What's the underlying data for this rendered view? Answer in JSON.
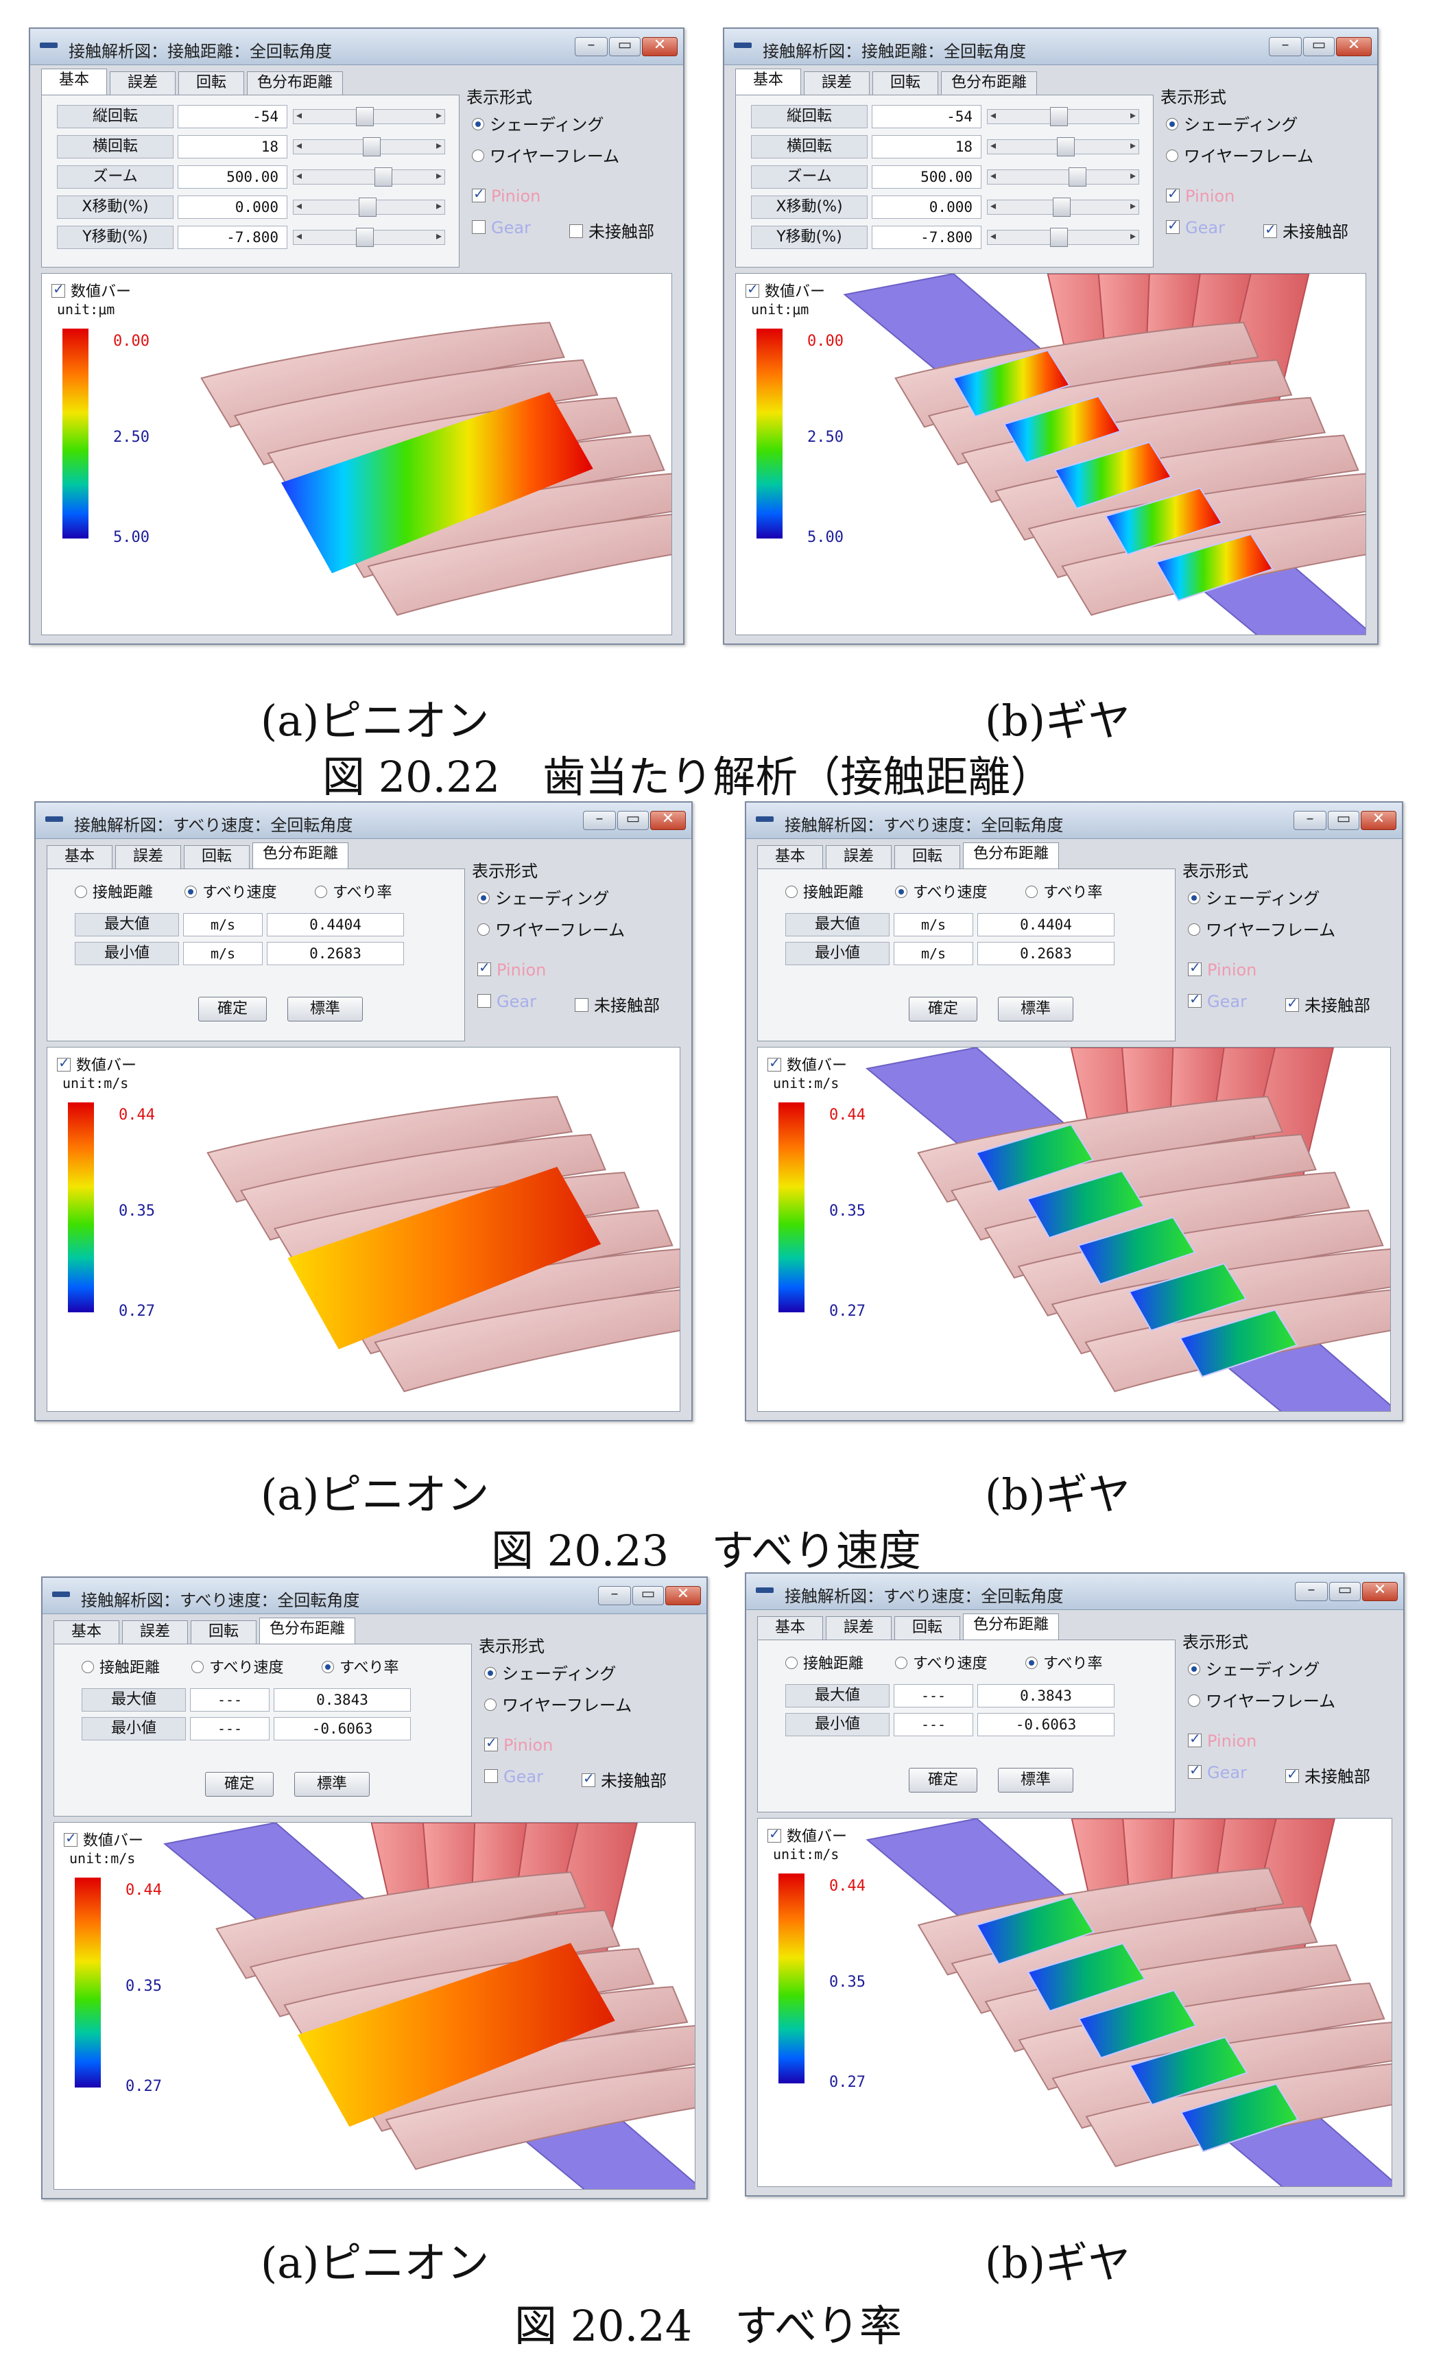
{
  "windows": [
    {
      "title": "接触解析図：接触距離：全回転角度",
      "tabs": [
        "基本",
        "誤差",
        "回転",
        "色分布距離"
      ],
      "active_tab": 0,
      "panel_type": "basic",
      "rows": [
        {
          "label": "縦回転",
          "value": "-54",
          "thumb": 0.48
        },
        {
          "label": "横回転",
          "value": "18",
          "thumb": 0.53
        },
        {
          "label": "ズーム",
          "value": "500.00",
          "thumb": 0.62
        },
        {
          "label": "X移動(%)",
          "value": "0.000",
          "thumb": 0.5
        },
        {
          "label": "Y移動(%)",
          "value": "-7.800",
          "thumb": 0.48
        }
      ],
      "display": {
        "header": "表示形式",
        "shading": "シェーディング",
        "wireframe": "ワイヤーフレーム",
        "shading_selected": true
      },
      "checks": {
        "pinion": "Pinion",
        "pinion_on": true,
        "gear": "Gear",
        "gear_on": false,
        "noncontact": "未接触部",
        "noncontact_on": false
      },
      "colorbar": {
        "label": "数値バー",
        "unit": "unit:μm",
        "ticks": [
          "0.00",
          "2.50",
          "5.00"
        ],
        "checked": true
      },
      "caption": "(a)ピニオン"
    },
    {
      "title": "接触解析図：接触距離：全回転角度",
      "tabs": [
        "基本",
        "誤差",
        "回転",
        "色分布距離"
      ],
      "active_tab": 0,
      "panel_type": "basic",
      "rows": [
        {
          "label": "縦回転",
          "value": "-54",
          "thumb": 0.48
        },
        {
          "label": "横回転",
          "value": "18",
          "thumb": 0.53
        },
        {
          "label": "ズーム",
          "value": "500.00",
          "thumb": 0.62
        },
        {
          "label": "X移動(%)",
          "value": "0.000",
          "thumb": 0.5
        },
        {
          "label": "Y移動(%)",
          "value": "-7.800",
          "thumb": 0.48
        }
      ],
      "display": {
        "header": "表示形式",
        "shading": "シェーディング",
        "wireframe": "ワイヤーフレーム",
        "shading_selected": true
      },
      "checks": {
        "pinion": "Pinion",
        "pinion_on": true,
        "gear": "Gear",
        "gear_on": true,
        "noncontact": "未接触部",
        "noncontact_on": true
      },
      "colorbar": {
        "label": "数値バー",
        "unit": "unit:μm",
        "ticks": [
          "0.00",
          "2.50",
          "5.00"
        ],
        "checked": true
      },
      "caption": "(b)ギヤ"
    },
    {
      "title": "接触解析図：すべり速度：全回転角度",
      "tabs": [
        "基本",
        "誤差",
        "回転",
        "色分布距離"
      ],
      "active_tab": 3,
      "panel_type": "color",
      "radio": [
        "接触距離",
        "すべり速度",
        "すべり率"
      ],
      "radio_selected": 1,
      "color_rows": [
        {
          "label": "最大値",
          "unit": "m/s",
          "value": "0.4404"
        },
        {
          "label": "最小値",
          "unit": "m/s",
          "value": "0.2683"
        }
      ],
      "buttons": [
        "確定",
        "標準"
      ],
      "display": {
        "header": "表示形式",
        "shading": "シェーディング",
        "wireframe": "ワイヤーフレーム",
        "shading_selected": true
      },
      "checks": {
        "pinion": "Pinion",
        "pinion_on": true,
        "gear": "Gear",
        "gear_on": false,
        "noncontact": "未接触部",
        "noncontact_on": false
      },
      "colorbar": {
        "label": "数値バー",
        "unit": "unit:m/s",
        "ticks": [
          "0.44",
          "0.35",
          "0.27"
        ],
        "checked": true
      },
      "caption": "(a)ピニオン"
    },
    {
      "title": "接触解析図：すべり速度：全回転角度",
      "tabs": [
        "基本",
        "誤差",
        "回転",
        "色分布距離"
      ],
      "active_tab": 3,
      "panel_type": "color",
      "radio": [
        "接触距離",
        "すべり速度",
        "すべり率"
      ],
      "radio_selected": 1,
      "color_rows": [
        {
          "label": "最大値",
          "unit": "m/s",
          "value": "0.4404"
        },
        {
          "label": "最小値",
          "unit": "m/s",
          "value": "0.2683"
        }
      ],
      "buttons": [
        "確定",
        "標準"
      ],
      "display": {
        "header": "表示形式",
        "shading": "シェーディング",
        "wireframe": "ワイヤーフレーム",
        "shading_selected": true
      },
      "checks": {
        "pinion": "Pinion",
        "pinion_on": true,
        "gear": "Gear",
        "gear_on": true,
        "noncontact": "未接触部",
        "noncontact_on": true
      },
      "colorbar": {
        "label": "数値バー",
        "unit": "unit:m/s",
        "ticks": [
          "0.44",
          "0.35",
          "0.27"
        ],
        "checked": true
      },
      "caption": "(b)ギヤ"
    },
    {
      "title": "接触解析図：すべり速度：全回転角度",
      "tabs": [
        "基本",
        "誤差",
        "回転",
        "色分布距離"
      ],
      "active_tab": 3,
      "panel_type": "color",
      "radio": [
        "接触距離",
        "すべり速度",
        "すべり率"
      ],
      "radio_selected": 2,
      "color_rows": [
        {
          "label": "最大値",
          "unit": "---",
          "value": "0.3843"
        },
        {
          "label": "最小値",
          "unit": "---",
          "value": "-0.6063"
        }
      ],
      "buttons": [
        "確定",
        "標準"
      ],
      "display": {
        "header": "表示形式",
        "shading": "シェーディング",
        "wireframe": "ワイヤーフレーム",
        "shading_selected": true
      },
      "checks": {
        "pinion": "Pinion",
        "pinion_on": true,
        "gear": "Gear",
        "gear_on": false,
        "noncontact": "未接触部",
        "noncontact_on": true
      },
      "colorbar": {
        "label": "数値バー",
        "unit": "unit:m/s",
        "ticks": [
          "0.44",
          "0.35",
          "0.27"
        ],
        "checked": true
      },
      "caption": "(a)ピニオン"
    },
    {
      "title": "接触解析図：すべり速度：全回転角度",
      "tabs": [
        "基本",
        "誤差",
        "回転",
        "色分布距離"
      ],
      "active_tab": 3,
      "panel_type": "color",
      "radio": [
        "接触距離",
        "すべり速度",
        "すべり率"
      ],
      "radio_selected": 2,
      "color_rows": [
        {
          "label": "最大値",
          "unit": "---",
          "value": "0.3843"
        },
        {
          "label": "最小値",
          "unit": "---",
          "value": "-0.6063"
        }
      ],
      "buttons": [
        "確定",
        "標準"
      ],
      "display": {
        "header": "表示形式",
        "shading": "シェーディング",
        "wireframe": "ワイヤーフレーム",
        "shading_selected": true
      },
      "checks": {
        "pinion": "Pinion",
        "pinion_on": true,
        "gear": "Gear",
        "gear_on": true,
        "noncontact": "未接触部",
        "noncontact_on": true
      },
      "colorbar": {
        "label": "数値バー",
        "unit": "unit:m/s",
        "ticks": [
          "0.44",
          "0.35",
          "0.27"
        ],
        "checked": true
      },
      "caption": "(b)ギヤ"
    }
  ],
  "figures": [
    {
      "number": "図 20.22",
      "title": "歯当たり解析（接触距離）"
    },
    {
      "number": "図 20.23",
      "title": "すべり速度"
    },
    {
      "number": "図 20.24",
      "title": "すべり率"
    }
  ],
  "colors": {
    "pinion": "#f0c4c4",
    "gear": "#8a7ee6",
    "gear_face": "#e8767a",
    "title_blue": "#2a4f8f"
  }
}
